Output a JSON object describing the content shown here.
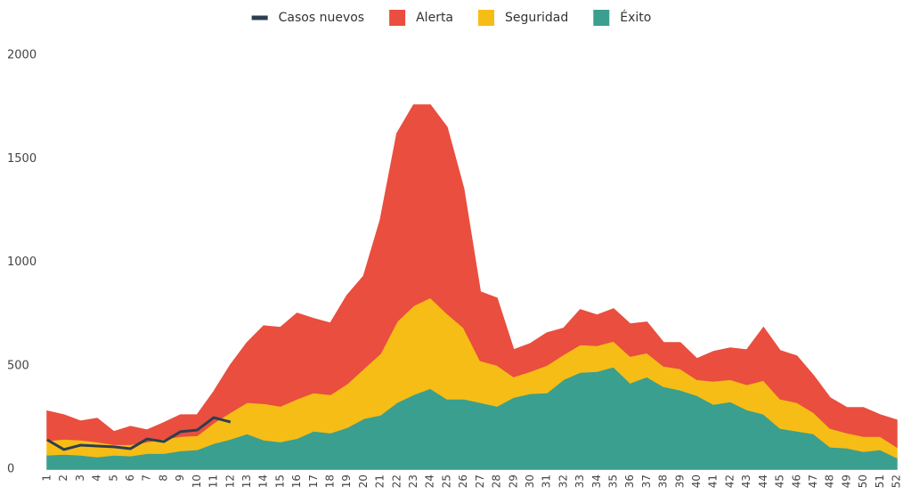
{
  "chart_data": {
    "type": "area",
    "categories": [
      "1",
      "2",
      "3",
      "4",
      "5",
      "6",
      "7",
      "8",
      "9",
      "10",
      "11",
      "12",
      "13",
      "14",
      "15",
      "16",
      "17",
      "18",
      "19",
      "20",
      "21",
      "22",
      "23",
      "24",
      "25",
      "26",
      "27",
      "28",
      "29",
      "30",
      "31",
      "32",
      "33",
      "34",
      "35",
      "36",
      "37",
      "38",
      "39",
      "40",
      "41",
      "42",
      "43",
      "44",
      "45",
      "46",
      "47",
      "48",
      "49",
      "50",
      "51",
      "52"
    ],
    "series": [
      {
        "name": "Casos nuevos",
        "type": "line",
        "color": "#2c3e50",
        "values": [
          142,
          95,
          116,
          112,
          108,
          99,
          146,
          133,
          181,
          189,
          249,
          228,
          null,
          null,
          null,
          null,
          null,
          null,
          null,
          null,
          null,
          null,
          null,
          null,
          null,
          null,
          null,
          null,
          null,
          null,
          null,
          null,
          null,
          null,
          null,
          null,
          null,
          null,
          null,
          null,
          null,
          null,
          null,
          null,
          null,
          null,
          null,
          null,
          null,
          null,
          null,
          null
        ]
      },
      {
        "name": "Alerta",
        "type": "area",
        "color": "#e94e3f",
        "values": [
          142,
          116,
          90,
          112,
          61,
          86,
          56,
          78,
          103,
          99,
          150,
          228,
          288,
          374,
          379,
          413,
          357,
          344,
          426,
          447,
          645,
          908,
          968,
          929,
          899,
          671,
          331,
          323,
          129,
          133,
          155,
          125,
          168,
          146,
          155,
          155,
          147,
          112,
          125,
          99,
          142,
          151,
          167,
          254,
          232,
          223,
          177,
          146,
          121,
          138,
          103,
          129
        ]
      },
      {
        "name": "Seguridad",
        "type": "area",
        "color": "#f6bd16",
        "values": [
          69,
          73,
          73,
          73,
          51,
          55,
          56,
          69,
          69,
          68,
          99,
          129,
          151,
          176,
          172,
          190,
          185,
          185,
          211,
          241,
          297,
          391,
          430,
          439,
          413,
          344,
          202,
          198,
          99,
          107,
          133,
          121,
          133,
          125,
          124,
          129,
          116,
          99,
          103,
          77,
          112,
          107,
          121,
          163,
          142,
          138,
          103,
          90,
          73,
          73,
          64,
          52
        ]
      },
      {
        "name": "Éxito",
        "type": "area",
        "color": "#3a9f8f",
        "values": [
          69,
          73,
          69,
          60,
          69,
          65,
          77,
          77,
          90,
          95,
          125,
          146,
          172,
          142,
          133,
          150,
          185,
          176,
          202,
          245,
          262,
          323,
          361,
          391,
          340,
          340,
          323,
          305,
          348,
          366,
          370,
          434,
          469,
          473,
          495,
          417,
          447,
          400,
          383,
          357,
          314,
          327,
          288,
          267,
          198,
          185,
          172,
          108,
          103,
          86,
          95,
          56
        ]
      }
    ],
    "ylim": [
      0,
      2000
    ],
    "yticks": [
      0,
      500,
      1000,
      1500,
      2000
    ],
    "grid": false,
    "legend": "top"
  }
}
